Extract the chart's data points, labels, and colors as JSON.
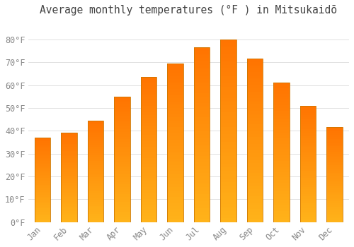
{
  "title": "Average monthly temperatures (°F ) in Mitsukaidō",
  "months": [
    "Jan",
    "Feb",
    "Mar",
    "Apr",
    "May",
    "Jun",
    "Jul",
    "Aug",
    "Sep",
    "Oct",
    "Nov",
    "Dec"
  ],
  "values": [
    37,
    39,
    44.5,
    55,
    63.5,
    69.5,
    76.5,
    80,
    71.5,
    61,
    51,
    41.5
  ],
  "bar_color_mid": "#FFA500",
  "bar_color_light": "#FFD060",
  "bar_color_dark": "#FF8C00",
  "bar_edge_color": "#CC7700",
  "ylim": [
    0,
    88
  ],
  "yticks": [
    0,
    10,
    20,
    30,
    40,
    50,
    60,
    70,
    80
  ],
  "ytick_labels": [
    "0°F",
    "10°F",
    "20°F",
    "30°F",
    "40°F",
    "50°F",
    "60°F",
    "70°F",
    "80°F"
  ],
  "grid_color": "#e0e0e0",
  "bg_color": "#ffffff",
  "title_fontsize": 10.5,
  "tick_fontsize": 8.5,
  "font_family": "monospace",
  "tick_color": "#888888",
  "bar_width": 0.6
}
